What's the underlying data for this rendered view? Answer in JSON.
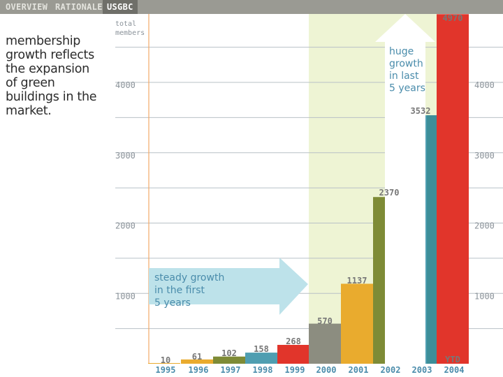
{
  "nav": {
    "tabs": [
      {
        "label": "OVERVIEW"
      },
      {
        "label": "RATIONALE"
      },
      {
        "label": "USGBC"
      }
    ],
    "active_index": 2
  },
  "headline": {
    "lines": [
      "membership",
      "growth reflects",
      "the expansion",
      "of green",
      "buildings in the",
      "market."
    ]
  },
  "colors": {
    "topbar": "#9a9a93",
    "gridline": "#b8c0c6",
    "highlight": "#eef4d4",
    "arrow_blue": "#bde2ea",
    "arrow_white": "#ffffff",
    "axis_line": "#f2a968"
  },
  "chart_data": {
    "type": "bar",
    "title": "",
    "ylabel_lines": [
      "total",
      "members"
    ],
    "xlabel": "",
    "categories": [
      "1995",
      "1996",
      "1997",
      "1998",
      "1999",
      "2000",
      "2001",
      "2002",
      "2003",
      "2004"
    ],
    "values": [
      10,
      61,
      102,
      158,
      268,
      570,
      1137,
      2370,
      3532,
      4970
    ],
    "value_labels": [
      "10",
      "61",
      "102",
      "158",
      "268",
      "570",
      "1137",
      "2370",
      "3532",
      "4970"
    ],
    "bar_colors": [
      "#e9ab2e",
      "#e9ab2e",
      "#7e8b36",
      "#4f9eb1",
      "#e1352b",
      "#8c8d80",
      "#e9ab2e",
      "#7e8b36",
      "#4f9eb1",
      "#e1352b"
    ],
    "bar_side_colors": [
      "",
      "",
      "",
      "",
      "",
      "",
      "",
      "",
      "#3d8e99",
      ""
    ],
    "extra_label": "YTD",
    "extra_label_index": 9,
    "yticks": [
      1000,
      2000,
      3000,
      4000
    ],
    "ylim": [
      0,
      5000
    ],
    "grid": true,
    "annotations": [
      {
        "lines": [
          "steady growth",
          "in the first",
          "5 years"
        ],
        "color": "#4a8cab"
      },
      {
        "lines": [
          "huge",
          "growth",
          "in last",
          "5 years"
        ],
        "color": "#4a8cab"
      }
    ],
    "highlight_range": [
      "2000",
      "2004"
    ]
  }
}
